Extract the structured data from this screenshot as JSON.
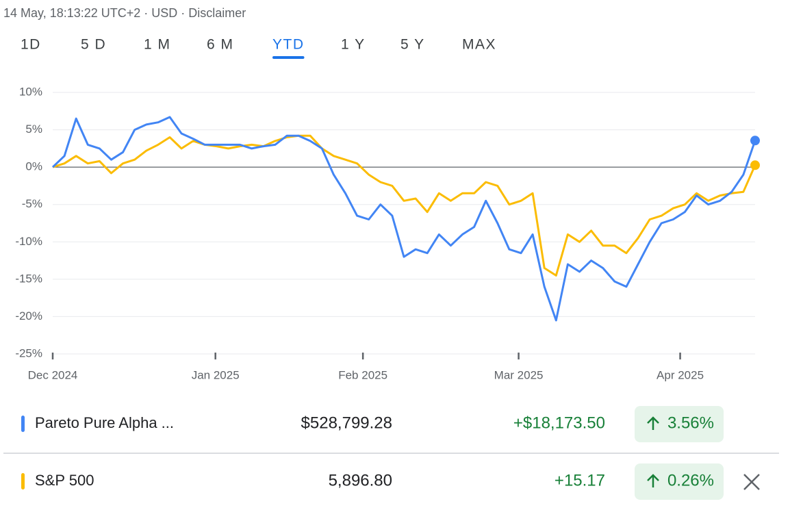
{
  "header": {
    "info": "14 May, 18:13:22 UTC+2 · USD · Disclaimer"
  },
  "tabs": [
    "1D",
    "5 D",
    "1 M",
    "6 M",
    "YTD",
    "1 Y",
    "5 Y",
    "MAX"
  ],
  "active_tab": 4,
  "chart_data": {
    "type": "line",
    "x": [
      0,
      1,
      2,
      3,
      4,
      5,
      6,
      7,
      8,
      9,
      10,
      11,
      12,
      13,
      14,
      15,
      16,
      17,
      18,
      19,
      20,
      21,
      22,
      23,
      24,
      25,
      26,
      27,
      28,
      29,
      30,
      31,
      32,
      33,
      34,
      35,
      36,
      37,
      38,
      39,
      40,
      41,
      42,
      43,
      44,
      45,
      46,
      47,
      48,
      49,
      50,
      51,
      52,
      53,
      54,
      55,
      56,
      57,
      58,
      59,
      60
    ],
    "xlim": [
      0,
      60
    ],
    "xticks": [
      {
        "value": 0,
        "label": "Dec 2024"
      },
      {
        "value": 13.9,
        "label": "Jan 2025"
      },
      {
        "value": 26.5,
        "label": "Feb 2025"
      },
      {
        "value": 39.8,
        "label": "Mar 2025"
      },
      {
        "value": 53.6,
        "label": "Apr 2025"
      }
    ],
    "ylim": [
      -25,
      10
    ],
    "yticks": [
      {
        "value": 10,
        "label": "10%"
      },
      {
        "value": 5,
        "label": "5%"
      },
      {
        "value": 0,
        "label": "0%"
      },
      {
        "value": -5,
        "label": "-5%"
      },
      {
        "value": -10,
        "label": "-10%"
      },
      {
        "value": -15,
        "label": "-15%"
      },
      {
        "value": -20,
        "label": "-20%"
      },
      {
        "value": -25,
        "label": "-25%"
      }
    ],
    "grid": true,
    "series": [
      {
        "name": "Pareto Pure Alpha ...",
        "color": "#4285f4",
        "values": [
          0,
          1.5,
          6.5,
          3,
          2.5,
          1,
          2,
          5,
          5.7,
          6,
          6.7,
          4.5,
          3.8,
          3,
          3,
          3,
          3,
          2.5,
          2.8,
          3,
          4.2,
          4.2,
          3.5,
          2.5,
          -1,
          -3.5,
          -6.5,
          -7,
          -5,
          -6.5,
          -12,
          -11,
          -11.5,
          -9,
          -10.5,
          -9,
          -8,
          -4.5,
          -7.5,
          -11,
          -11.5,
          -9,
          -16,
          -20.5,
          -13,
          -14,
          -12.5,
          -13.5,
          -15.3,
          -16,
          -13,
          -10,
          -7.5,
          -7,
          -6,
          -3.8,
          -5,
          -4.5,
          -3.3,
          -1,
          3.56
        ]
      },
      {
        "name": "S&P 500",
        "color": "#fbbc04",
        "values": [
          0,
          0.5,
          1.5,
          0.5,
          0.8,
          -0.8,
          0.5,
          1,
          2.2,
          3,
          4,
          2.5,
          3.5,
          3,
          2.8,
          2.5,
          2.8,
          3,
          2.8,
          3.5,
          4,
          4.2,
          4.2,
          2.5,
          1.5,
          1,
          0.5,
          -1,
          -2,
          -2.5,
          -4.5,
          -4.2,
          -6,
          -3.5,
          -4.5,
          -3.5,
          -3.5,
          -2,
          -2.5,
          -5,
          -4.5,
          -3.5,
          -13.5,
          -14.5,
          -9,
          -10,
          -8.5,
          -10.5,
          -10.5,
          -11.5,
          -9.5,
          -7,
          -6.5,
          -5.5,
          -5,
          -3.5,
          -4.5,
          -3.8,
          -3.5,
          -3.3,
          0.26
        ]
      }
    ]
  },
  "quotes": [
    {
      "price": "$528,799.28",
      "change": "+$18,173.50",
      "change_pct": "3.56%"
    },
    {
      "price": "5,896.80",
      "change": "+15.17",
      "change_pct": "0.26%"
    }
  ]
}
